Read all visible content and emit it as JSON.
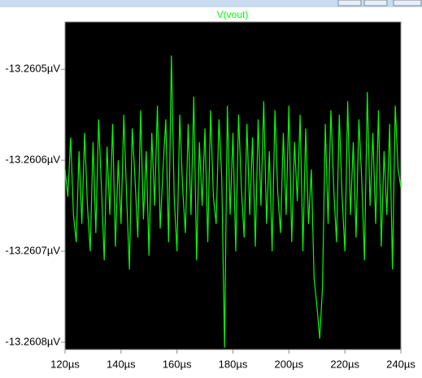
{
  "chart_data": {
    "type": "line",
    "title": "V(vout)",
    "x": [
      120,
      121,
      122,
      123,
      124,
      125,
      126,
      127,
      128,
      129,
      130,
      131,
      132,
      133,
      134,
      135,
      136,
      137,
      138,
      139,
      140,
      141,
      142,
      143,
      144,
      145,
      146,
      147,
      148,
      149,
      150,
      151,
      152,
      153,
      154,
      155,
      156,
      157,
      158,
      159,
      160,
      161,
      162,
      163,
      164,
      165,
      166,
      167,
      168,
      169,
      170,
      171,
      172,
      173,
      174,
      175,
      176,
      177,
      178,
      179,
      180,
      181,
      182,
      183,
      184,
      185,
      186,
      187,
      188,
      189,
      190,
      191,
      192,
      193,
      194,
      195,
      196,
      197,
      198,
      199,
      200,
      201,
      202,
      203,
      204,
      205,
      206,
      207,
      208,
      209,
      210,
      211,
      212,
      213,
      214,
      215,
      216,
      217,
      218,
      219,
      220,
      221,
      222,
      223,
      224,
      225,
      226,
      227,
      228,
      229,
      230,
      231,
      232,
      233,
      234,
      235,
      236,
      237,
      238,
      239,
      240
    ],
    "series": [
      {
        "name": "V(vout)",
        "color": "#00ff00",
        "values": [
          -13.26061,
          -13.26064,
          -13.260575,
          -13.26066,
          -13.26069,
          -13.26059,
          -13.26067,
          -13.26057,
          -13.26065,
          -13.2607,
          -13.26058,
          -13.26068,
          -13.260555,
          -13.26063,
          -13.26071,
          -13.260585,
          -13.26066,
          -13.26056,
          -13.260695,
          -13.2606,
          -13.26067,
          -13.26055,
          -13.26064,
          -13.26072,
          -13.260565,
          -13.26062,
          -13.260685,
          -13.260545,
          -13.260665,
          -13.26059,
          -13.260705,
          -13.26057,
          -13.26065,
          -13.26054,
          -13.260675,
          -13.26061,
          -13.260555,
          -13.26069,
          -13.260485,
          -13.26064,
          -13.2607,
          -13.26055,
          -13.26063,
          -13.26068,
          -13.26056,
          -13.26066,
          -13.26053,
          -13.26071,
          -13.26058,
          -13.26065,
          -13.260565,
          -13.26069,
          -13.260545,
          -13.26064,
          -13.26067,
          -13.260555,
          -13.26062,
          -13.260806,
          -13.26054,
          -13.26066,
          -13.26057,
          -13.2607,
          -13.26055,
          -13.26063,
          -13.260685,
          -13.26056,
          -13.26066,
          -13.260575,
          -13.260695,
          -13.260555,
          -13.26065,
          -13.260535,
          -13.26067,
          -13.26059,
          -13.2607,
          -13.260545,
          -13.260635,
          -13.26068,
          -13.26057,
          -13.26066,
          -13.26054,
          -13.26069,
          -13.26058,
          -13.260645,
          -13.26055,
          -13.2607,
          -13.260565,
          -13.26067,
          -13.26061,
          -13.26073,
          -13.26076,
          -13.260796,
          -13.26074,
          -13.26056,
          -13.26067,
          -13.260545,
          -13.26063,
          -13.26069,
          -13.26055,
          -13.26064,
          -13.2607,
          -13.260535,
          -13.26066,
          -13.26058,
          -13.260685,
          -13.260555,
          -13.26062,
          -13.26071,
          -13.260525,
          -13.26065,
          -13.26057,
          -13.26067,
          -13.260545,
          -13.260695,
          -13.26059,
          -13.26066,
          -13.26056,
          -13.26072,
          -13.26054,
          -13.26061,
          -13.26063
        ]
      }
    ],
    "xlim": [
      120,
      240
    ],
    "xticks": [
      {
        "value": 120,
        "label": "120µs"
      },
      {
        "value": 140,
        "label": "140µs"
      },
      {
        "value": 160,
        "label": "160µs"
      },
      {
        "value": 180,
        "label": "180µs"
      },
      {
        "value": 200,
        "label": "200µs"
      },
      {
        "value": 220,
        "label": "220µs"
      },
      {
        "value": 240,
        "label": "240µs"
      }
    ],
    "ylim": [
      -13.260808,
      -13.260448
    ],
    "yticks": [
      {
        "value": -13.2605,
        "label": "-13.2605µV"
      },
      {
        "value": -13.2606,
        "label": "-13.2606µV"
      },
      {
        "value": -13.2607,
        "label": "-13.2607µV"
      },
      {
        "value": -13.2608,
        "label": "-13.2608µV"
      }
    ],
    "grid": false
  }
}
